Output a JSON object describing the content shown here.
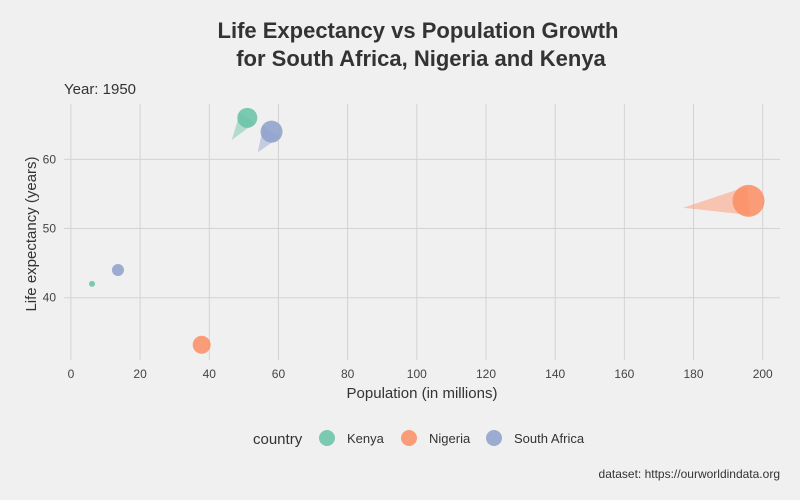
{
  "chart_data": {
    "type": "scatter",
    "title_line1": "Life Expectancy vs Population Growth",
    "title_line2": "for South Africa, Nigeria and Kenya",
    "subtitle": "Year: 1950",
    "xlabel": "Population (in millions)",
    "ylabel": "Life expectancy (years)",
    "xlim": [
      -2,
      205
    ],
    "ylim": [
      31,
      68
    ],
    "x_ticks": [
      0,
      20,
      40,
      60,
      80,
      100,
      120,
      140,
      160,
      180,
      200
    ],
    "y_ticks": [
      40,
      50,
      60
    ],
    "grid": true,
    "legend_title": "country",
    "legend_position": "bottom",
    "caption": "dataset: https://ourworldindata.org",
    "series": [
      {
        "name": "Kenya",
        "color": "#66c2a5",
        "points": [
          {
            "x": 6.1,
            "y": 42.0,
            "size": 3
          },
          {
            "x": 51.0,
            "y": 66.0,
            "size": 10
          }
        ]
      },
      {
        "name": "Nigeria",
        "color": "#fc8d62",
        "points": [
          {
            "x": 37.8,
            "y": 33.2,
            "size": 9
          },
          {
            "x": 195.9,
            "y": 54.0,
            "size": 16
          }
        ]
      },
      {
        "name": "South Africa",
        "color": "#8da0cb",
        "points": [
          {
            "x": 13.6,
            "y": 44.0,
            "size": 6
          },
          {
            "x": 58.0,
            "y": 64.0,
            "size": 11
          }
        ]
      }
    ],
    "trails": [
      {
        "series": "Kenya",
        "from": {
          "x": 46.5,
          "y": 62.8
        },
        "to": {
          "x": 51.0,
          "y": 66.0
        }
      },
      {
        "series": "South Africa",
        "from": {
          "x": 54.0,
          "y": 61.0
        },
        "to": {
          "x": 58.0,
          "y": 64.0
        }
      },
      {
        "series": "Nigeria",
        "from": {
          "x": 177.0,
          "y": 53.0
        },
        "to": {
          "x": 195.9,
          "y": 54.0
        }
      }
    ]
  }
}
